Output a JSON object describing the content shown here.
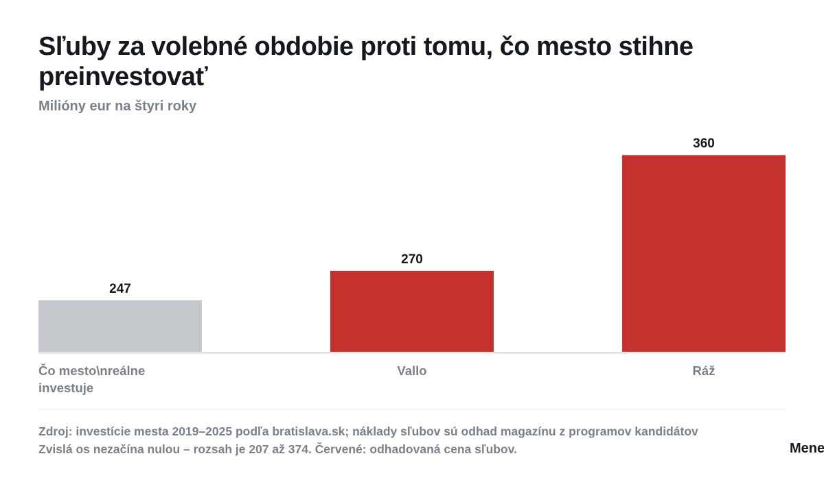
{
  "title": "Sľuby za volebné obdobie proti tomu, čo mesto stihne preinvestovať",
  "subtitle": "Milióny eur na štyri roky",
  "colors": {
    "grey": "#c5c8cd",
    "red": "#c4312e",
    "text": "#15191f",
    "muted": "#7a808b",
    "baseline": "#d9dbde"
  },
  "chart_data": {
    "type": "bar",
    "categories": [
      "Čo mesto\\nreálne investuje",
      "Vallo",
      "Ráž"
    ],
    "values": [
      247,
      270,
      360
    ],
    "data_labels": [
      "247",
      "270",
      "360"
    ],
    "bar_colors": [
      "grey",
      "red",
      "red"
    ],
    "ylim": [
      207,
      374
    ],
    "xlabel": "",
    "ylabel": "",
    "grid": false
  },
  "footer": {
    "line1": "Zdroj: investície mesta 2019–2025 podľa bratislava.sk; náklady sľubov sú odhad magazínu z programov kandidátov",
    "line2": "Zvislá os nezačína nulou – rozsah je 207 až 374. Červené: odhadovaná cena sľubov."
  },
  "brand": "Menej"
}
